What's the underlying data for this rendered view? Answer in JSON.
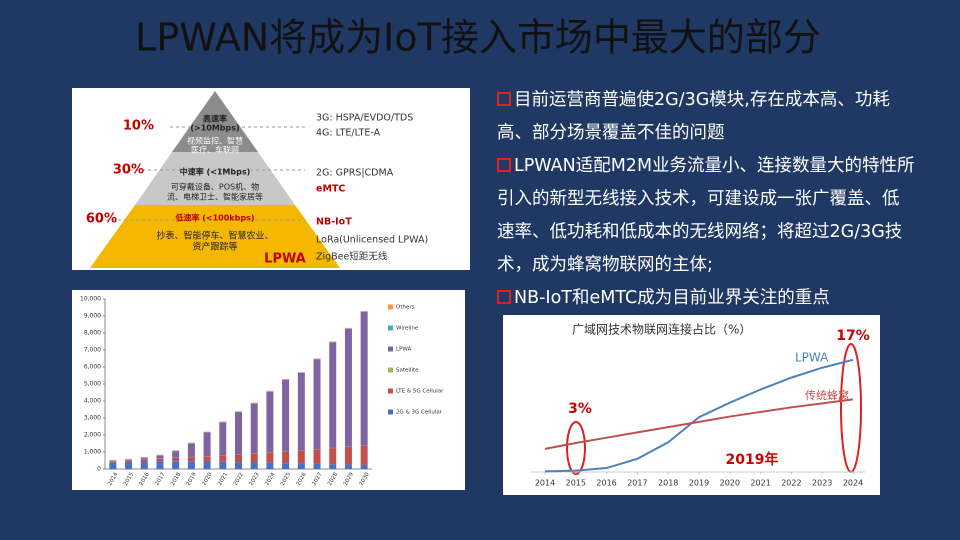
{
  "title": "LPWAN将成为IoT接入市场中最大的部分",
  "bullets": [
    "目前运营商普遍使2G/3G模块,存在成本高、功耗高、部分场景覆盖不佳的问题",
    "LPWAN适配M2M业务流量小、连接数量大的特性所引入的新型无线接入技术，可建设成一张广覆盖、低速率、低功耗和低成本的无线网络；将超过2G/3G技术，成为蜂窝物联网的主体;",
    "NB-IoT和eMTC成为目前业界关注的重点"
  ],
  "pyramid": {
    "levels": [
      {
        "share": "10%",
        "name": "高速率",
        "rate": "(>10Mbps)",
        "uses": [
          "视频监控、智慧",
          "医疗、车联网"
        ],
        "tech": [
          "3G: HSPA/EVDO/TDS",
          "4G: LTE/LTE-A"
        ]
      },
      {
        "share": "30%",
        "name": "中速率 (<1Mbps)",
        "uses": [
          "可穿戴设备、POS机、物",
          "流、电梯卫士、智能家居等"
        ],
        "tech": [
          "2G: GPRS|CDMA",
          "eMTC"
        ]
      },
      {
        "share": "60%",
        "name": "低速率 (<100kbps)",
        "uses": [
          "抄表、智能停车、智慧农业、",
          "资产跟踪等"
        ],
        "tech": [
          "NB-IoT",
          "LoRa(Unlicensed LPWA)",
          "ZigBee短距无线"
        ]
      }
    ],
    "base_label": "LPWA"
  },
  "chart_data": [
    {
      "type": "stacked-bar",
      "categories": [
        "2014",
        "2015",
        "2016",
        "2017",
        "2018",
        "2019",
        "2020",
        "2021",
        "2022",
        "2023",
        "2024",
        "2025",
        "2026",
        "2027",
        "2028",
        "2029",
        "2030"
      ],
      "series": [
        {
          "name": "2G & 3G Cellular",
          "color": "#4472c4",
          "values": [
            400,
            420,
            440,
            450,
            460,
            450,
            440,
            420,
            400,
            380,
            360,
            340,
            320,
            300,
            280,
            260,
            240
          ]
        },
        {
          "name": "LTE & 5G Cellular",
          "color": "#c0504d",
          "values": [
            50,
            80,
            120,
            150,
            200,
            250,
            300,
            380,
            450,
            520,
            600,
            680,
            760,
            850,
            950,
            1050,
            1150
          ]
        },
        {
          "name": "Satellite",
          "color": "#9bbb59",
          "values": [
            10,
            10,
            10,
            10,
            10,
            10,
            10,
            10,
            10,
            10,
            10,
            10,
            10,
            10,
            10,
            10,
            10
          ]
        },
        {
          "name": "LPWA",
          "color": "#8064a2",
          "values": [
            20,
            40,
            80,
            180,
            380,
            790,
            1400,
            1930,
            2490,
            2940,
            3580,
            4220,
            4560,
            5290,
            6210,
            6930,
            7850
          ]
        },
        {
          "name": "Wireline",
          "color": "#4bacc6",
          "values": [
            20,
            20,
            20,
            20,
            20,
            20,
            20,
            20,
            20,
            20,
            20,
            20,
            20,
            20,
            20,
            20,
            20
          ]
        },
        {
          "name": "Others",
          "color": "#f79646",
          "values": [
            30,
            30,
            30,
            30,
            30,
            30,
            30,
            30,
            30,
            30,
            30,
            30,
            30,
            30,
            30,
            30,
            30
          ]
        }
      ],
      "ylim": [
        0,
        10000
      ],
      "yticks": [
        0,
        {
          "value": 1000,
          "label": "1,000"
        },
        {
          "value": 2000,
          "label": "2,000"
        },
        {
          "value": 3000,
          "label": "3,000"
        },
        {
          "value": 4000,
          "label": "4,000"
        },
        {
          "value": 5000,
          "label": "5,000"
        },
        {
          "value": 6000,
          "label": "6,000"
        },
        {
          "value": 7000,
          "label": "7,000"
        },
        {
          "value": 8000,
          "label": "8,000"
        },
        {
          "value": 9000,
          "label": "9,000"
        },
        {
          "value": 10000,
          "label": "10,000"
        }
      ]
    },
    {
      "type": "line",
      "title": "广域网技术物联网连接占比（%）",
      "x": [
        2014,
        2015,
        2016,
        2017,
        2018,
        2019,
        2020,
        2021,
        2022,
        2023,
        2024
      ],
      "xlim": [
        2014,
        2024
      ],
      "xticks": [
        2014,
        2015,
        2016,
        2017,
        2018,
        2019,
        2020,
        2021,
        2022,
        2023,
        2024
      ],
      "ylim": [
        0,
        20
      ],
      "series": [
        {
          "name": "LPWA",
          "color": "#4f81bd",
          "values": [
            0.1,
            0.2,
            0.6,
            2,
            4.5,
            8.3,
            10.5,
            12.5,
            14.3,
            15.8,
            17
          ]
        },
        {
          "name": "传统蜂窝",
          "color": "#c0504d",
          "values": [
            3.5,
            4.4,
            5.2,
            6,
            6.8,
            7.6,
            8.4,
            9.1,
            9.8,
            10.4,
            11
          ]
        }
      ],
      "annotations": [
        "17%",
        "3%",
        "2019年"
      ]
    }
  ]
}
